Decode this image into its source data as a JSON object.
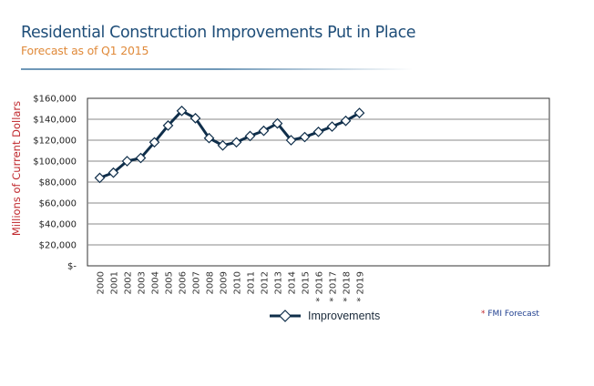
{
  "header": {
    "title": "Residential Construction Improvements Put in Place",
    "subtitle": "Forecast as of Q1 2015"
  },
  "footnote": {
    "asterisk": "*",
    "text": "FMI Forecast"
  },
  "colors": {
    "line": "#0f2e4a",
    "title": "#1f4e79",
    "subtitle": "#e08a3a",
    "axis_title": "#c0282d",
    "grid": "#888888"
  },
  "chart_data": {
    "type": "line",
    "title": "Residential Construction Improvements Put in Place",
    "subtitle": "Forecast as of Q1 2015",
    "ylabel": "Millions of Current Dollars",
    "xlabel": "",
    "ylim": [
      0,
      160000
    ],
    "grid": true,
    "legend_position": "bottom",
    "yticks": [
      "$-",
      "$20,000",
      "$40,000",
      "$60,000",
      "$80,000",
      "$100,000",
      "$120,000",
      "$140,000",
      "$160,000"
    ],
    "categories": [
      "2000",
      "2001",
      "2002",
      "2003",
      "2004",
      "2005",
      "2006",
      "2007",
      "2008",
      "2009",
      "2010",
      "2011",
      "2012",
      "2013",
      "2014",
      "2015",
      "* 2016",
      "* 2017",
      "* 2018",
      "* 2019"
    ],
    "series": [
      {
        "name": "Improvements",
        "marker": "diamond",
        "values": [
          84000,
          89000,
          100000,
          103000,
          118000,
          134000,
          148000,
          141000,
          122000,
          115000,
          118000,
          124000,
          129000,
          136000,
          120000,
          123000,
          128000,
          133000,
          138500,
          146000
        ]
      }
    ]
  }
}
